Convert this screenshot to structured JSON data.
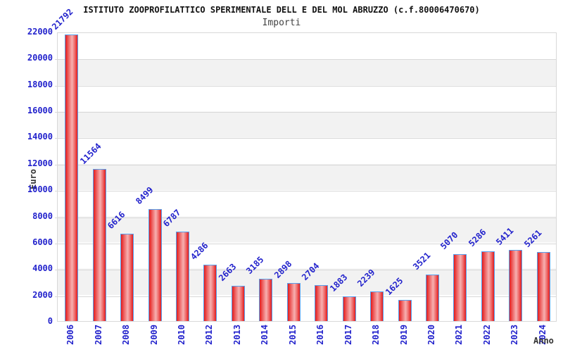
{
  "chart_data": {
    "type": "bar",
    "title": "ISTITUTO ZOOPROFILATTICO SPERIMENTALE DELL E DEL MOL ABRUZZO (c.f.80006470670)",
    "subtitle": "Importi",
    "xlabel": "Anno",
    "ylabel": "Euro",
    "categories": [
      "2006",
      "2007",
      "2008",
      "2009",
      "2010",
      "2012",
      "2013",
      "2014",
      "2015",
      "2016",
      "2017",
      "2018",
      "2019",
      "2020",
      "2021",
      "2022",
      "2023",
      "2024"
    ],
    "values": [
      21792,
      11564,
      6616,
      8499,
      6787,
      4286,
      2663,
      3185,
      2898,
      2704,
      1883,
      2239,
      1625,
      3521,
      5070,
      5286,
      5411,
      5261
    ],
    "ylim": [
      0,
      22000
    ],
    "y_tick_step": 2000,
    "y_ticks": [
      0,
      2000,
      4000,
      6000,
      8000,
      10000,
      12000,
      14000,
      16000,
      18000,
      20000,
      22000
    ],
    "grid": "horizontal-gridlines-with-alternating-bands",
    "legend_position": "none",
    "bar_value_labels_rotation_deg": -45,
    "x_tick_labels_rotation_deg": -90,
    "colors": {
      "label_blue": "#2222cc",
      "gridline": "#d8d8d8",
      "band_gray": "#f2f2f2",
      "bar_edge": "#e41b1b",
      "bar_mid": "#ee6a6a",
      "bar_center": "#f7b0b0",
      "bar_border": "#55a0ee",
      "title": "#111111",
      "subtitle": "#444444",
      "axis_title": "#333333"
    }
  }
}
